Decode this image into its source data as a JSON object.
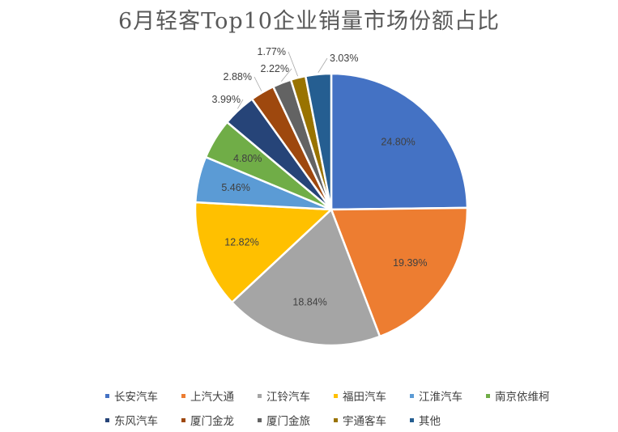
{
  "chart_data": {
    "type": "pie",
    "title": "6月轻客Top10企业销量市场份额占比",
    "unit": "%",
    "categories": [
      "长安汽车",
      "上汽大通",
      "江铃汽车",
      "福田汽车",
      "江淮汽车",
      "南京依维柯",
      "东风汽车",
      "厦门金龙",
      "厦门金旅",
      "宇通客车",
      "其他"
    ],
    "values": [
      24.8,
      19.39,
      18.84,
      12.82,
      5.46,
      4.8,
      3.99,
      2.88,
      2.22,
      1.77,
      3.03
    ],
    "data_labels": [
      "24.80%",
      "19.39%",
      "18.84%",
      "12.82%",
      "5.46%",
      "4.80%",
      "3.99%",
      "2.88%",
      "2.22%",
      "1.77%",
      "3.03%"
    ],
    "colors": [
      "#4472C4",
      "#ED7D31",
      "#A5A5A5",
      "#FFC000",
      "#5B9BD5",
      "#70AD47",
      "#264478",
      "#9E480E",
      "#636363",
      "#997300",
      "#255E91"
    ],
    "legend_position": "bottom"
  }
}
